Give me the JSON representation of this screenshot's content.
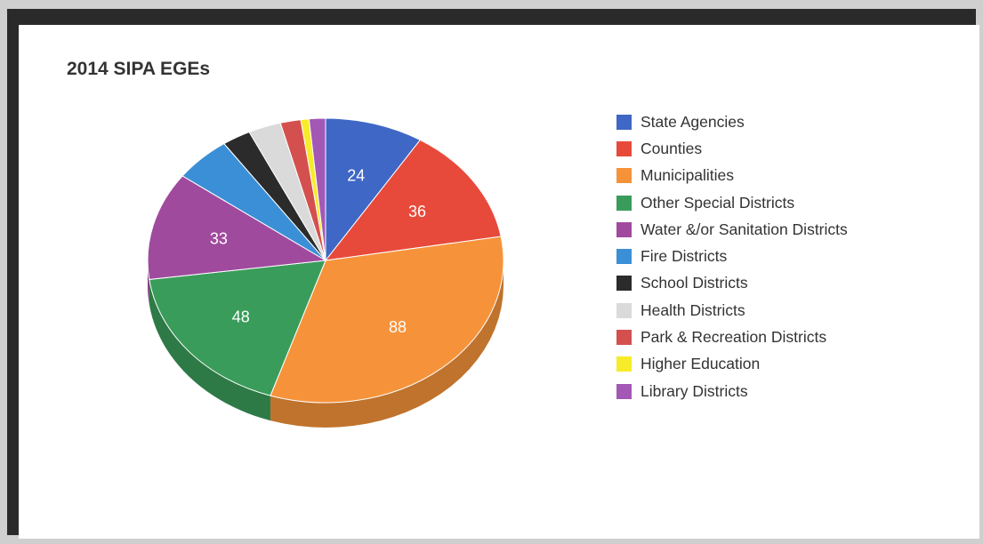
{
  "chart_data": {
    "type": "pie",
    "title": "2014 SIPA EGEs",
    "legend_position": "right",
    "style": "3d",
    "slices": [
      {
        "label": "State Agencies",
        "value": 24,
        "color": "#3f67c5",
        "value_label": "24"
      },
      {
        "label": "Counties",
        "value": 36,
        "color": "#e74a3b",
        "value_label": "36"
      },
      {
        "label": "Municipalities",
        "value": 88,
        "color": "#f6933a",
        "value_label": "88"
      },
      {
        "label": "Other Special Districts",
        "value": 48,
        "color": "#3a9c5a",
        "value_label": "48"
      },
      {
        "label": "Water &/or Sanitation Districts",
        "value": 33,
        "color": "#a04a9e",
        "value_label": "33"
      },
      {
        "label": "Fire Districts",
        "value": 14,
        "color": "#3b8fd6",
        "value_label": ""
      },
      {
        "label": "School Districts",
        "value": 7,
        "color": "#2b2b2b",
        "value_label": ""
      },
      {
        "label": "Health Districts",
        "value": 8,
        "color": "#dadada",
        "value_label": ""
      },
      {
        "label": "Park & Recreation Districts",
        "value": 5,
        "color": "#d4504e",
        "value_label": ""
      },
      {
        "label": "Higher Education",
        "value": 2,
        "color": "#f7ec2a",
        "value_label": ""
      },
      {
        "label": "Library Districts",
        "value": 4,
        "color": "#a358b5",
        "value_label": ""
      }
    ]
  }
}
